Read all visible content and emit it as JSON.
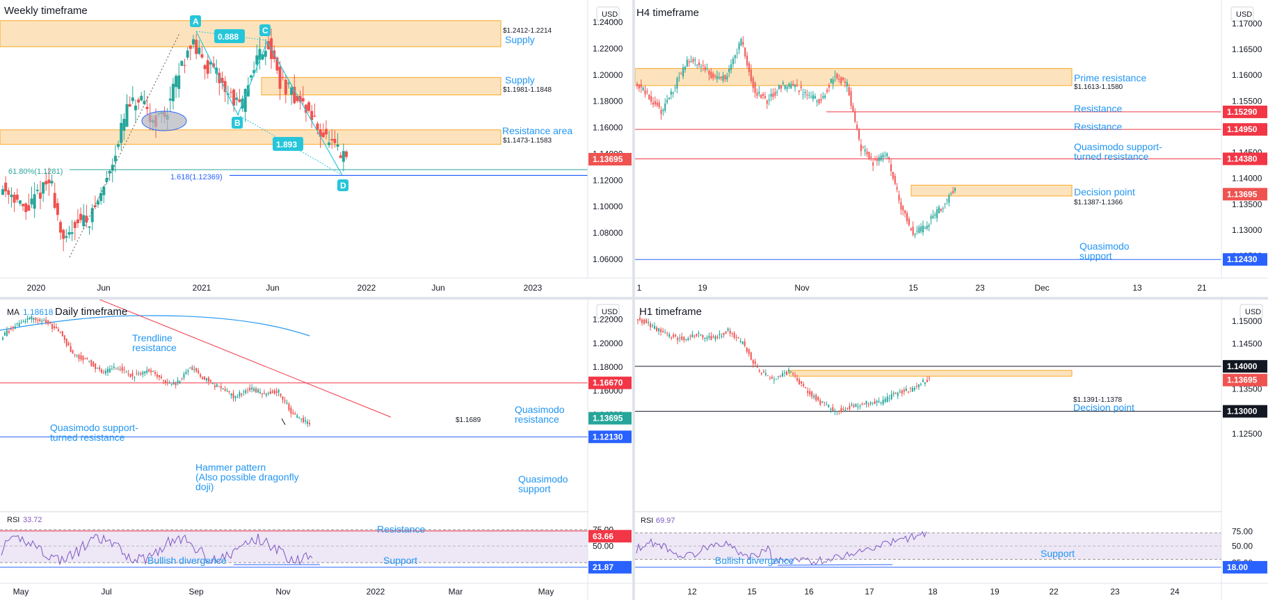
{
  "colors": {
    "up": "#26a69a",
    "down": "#ef5350",
    "zone_fill": "#fde3bd",
    "zone_stroke": "#f7a928",
    "accent": "#2196f3",
    "red_line": "#f23645",
    "blue_line": "#2962ff",
    "teal": "#26a69a",
    "rsi_fill": "#ede7f6",
    "rsi_line": "#7e57c2",
    "ma_line": "#2196f3"
  },
  "panels": {
    "weekly": {
      "title": "Weekly timeframe",
      "currency": "USD",
      "price_ticks": [
        "1.24000",
        "1.22000",
        "1.20000",
        "1.18000",
        "1.16000",
        "1.14000",
        "1.12000",
        "1.10000",
        "1.08000",
        "1.06000"
      ],
      "x_ticks": [
        "2020",
        "Jun",
        "2021",
        "Jun",
        "2022",
        "Jun",
        "2023"
      ],
      "price_tag": "1.13695",
      "zones": [
        {
          "range_label": "$1.2412-1.2214",
          "label": "Supply",
          "top": 1.2412,
          "bottom": 1.2214
        },
        {
          "range_label": "$1.1981-1.1848",
          "label": "Supply",
          "top": 1.1981,
          "bottom": 1.1848
        },
        {
          "range_label": "$1.1473-1.1583",
          "label": "Resistance area",
          "top": 1.1583,
          "bottom": 1.1473
        }
      ],
      "fib_label": "61.80%(1.1281)",
      "fib_ext_label": "1.618(1.12369)",
      "pattern_points": [
        "A",
        "B",
        "C",
        "D"
      ],
      "ratios": [
        "0.888",
        "1.893"
      ]
    },
    "h4": {
      "title": "H4 timeframe",
      "currency": "USD",
      "price_ticks": [
        "1.17000",
        "1.16500",
        "1.16000",
        "1.15500",
        "1.15000",
        "1.14500",
        "1.14000",
        "1.13500",
        "1.13000",
        "1.12500"
      ],
      "x_ticks": [
        "1",
        "19",
        "Nov",
        "15",
        "23",
        "Dec",
        "13",
        "21"
      ],
      "tags": [
        "1.15290",
        "1.14950",
        "1.14380",
        "1.13695",
        "1.12430"
      ],
      "prime_resistance": {
        "label": "Prime resistance",
        "range_label": "$1.1613-1.1580",
        "top": 1.1613,
        "bottom": 1.158
      },
      "resistance1": {
        "label": "Resistance",
        "price": 1.1529
      },
      "resistance2": {
        "label": "Resistance",
        "price": 1.1495
      },
      "qm_turned": {
        "line1": "Quasimodo support-",
        "line2": "turned resistance",
        "price": 1.1438
      },
      "decision": {
        "label": "Decision point",
        "range_label": "$1.1387-1.1366",
        "top": 1.1387,
        "bottom": 1.1366
      },
      "qm_support": {
        "line1": "Quasimodo",
        "line2": "support",
        "price": 1.1243
      }
    },
    "daily": {
      "title": "Daily timeframe",
      "ma_label": "MA",
      "ma_value": "1.18618",
      "currency": "USD",
      "price_ticks": [
        "1.22000",
        "1.20000",
        "1.18000",
        "1.16000",
        "1.14000"
      ],
      "x_ticks": [
        "May",
        "Jul",
        "Sep",
        "Nov",
        "2022",
        "Mar",
        "May"
      ],
      "tags": [
        "1.16670",
        "1.13695",
        "1.12130"
      ],
      "trendline": {
        "line1": "Trendline",
        "line2": "resistance"
      },
      "qm_resistance": {
        "line1": "Quasimodo",
        "line2": "resistance",
        "price": 1.1667
      },
      "qm_turned": {
        "line1": "Quasimodo support-",
        "line2": "turned resistance"
      },
      "price_1689": "$1.1689",
      "hammer": {
        "line1": "Hammer pattern",
        "line2": "(Also possible dragonfly",
        "line3": "doji)"
      },
      "qm_support": {
        "line1": "Quasimodo",
        "line2": "support",
        "price": 1.1213
      },
      "rsi": {
        "label": "RSI",
        "value": "33.72",
        "ticks": [
          "75.00",
          "50.00"
        ],
        "tags": [
          "63.66",
          "21.87"
        ],
        "resistance": "Resistance",
        "support": "Support",
        "divergence": "Bullish divergence"
      }
    },
    "h1": {
      "title": "H1 timeframe",
      "currency": "USD",
      "price_ticks": [
        "1.15000",
        "1.14500",
        "1.13500",
        "1.12500"
      ],
      "x_ticks": [
        "12",
        "15",
        "16",
        "17",
        "18",
        "19",
        "22",
        "23",
        "24"
      ],
      "tags": [
        "1.14000",
        "1.13695",
        "1.13000"
      ],
      "decision": {
        "label": "Decision point",
        "range_label": "$1.1391-1.1378",
        "top": 1.1391,
        "bottom": 1.1378
      },
      "rsi": {
        "label": "RSI",
        "value": "69.97",
        "ticks": [
          "75.00",
          "50.00",
          "25.00"
        ],
        "tags": [
          "18.00"
        ],
        "support": "Support",
        "divergence": "Bullish divergence"
      }
    }
  }
}
